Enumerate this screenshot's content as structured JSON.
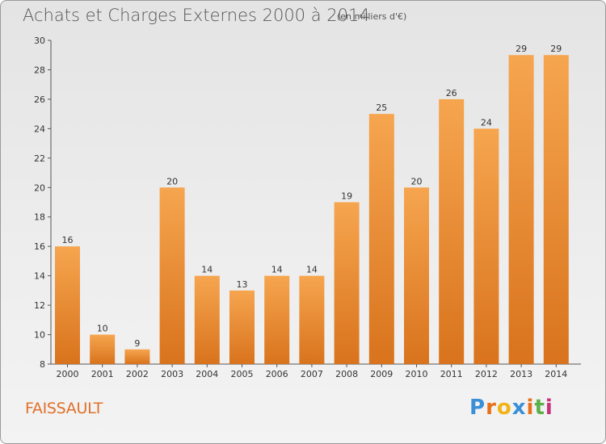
{
  "header": {
    "title": "Achats et Charges Externes 2000 à 2014",
    "unit": "(en milliers d'€)"
  },
  "footer": {
    "commune": "FAISSAULT",
    "logo_letters": [
      "P",
      "r",
      "o",
      "x",
      "i",
      "t",
      "i"
    ],
    "logo_colors": [
      "#3a8fd6",
      "#e8701a",
      "#f2b318",
      "#3a8fd6",
      "#e8701a",
      "#5bb04a",
      "#c8327a"
    ]
  },
  "colors": {
    "bar_top": "#f6a54f",
    "bar_bottom": "#d9731d",
    "title": "#555555",
    "commune": "#e0702a"
  },
  "chart_data": {
    "type": "bar",
    "title": "Achats et Charges Externes 2000 à 2014",
    "subtitle": "(en milliers d'€)",
    "categories": [
      "2000",
      "2001",
      "2002",
      "2003",
      "2004",
      "2005",
      "2006",
      "2007",
      "2008",
      "2009",
      "2010",
      "2011",
      "2012",
      "2013",
      "2014"
    ],
    "values": [
      16,
      10,
      9,
      20,
      14,
      13,
      14,
      14,
      19,
      25,
      20,
      26,
      24,
      29,
      29
    ],
    "ylim": [
      8,
      30
    ],
    "yticks": [
      8,
      10,
      12,
      14,
      16,
      18,
      20,
      22,
      24,
      26,
      28,
      30
    ],
    "grid": false,
    "data_labels": true
  }
}
